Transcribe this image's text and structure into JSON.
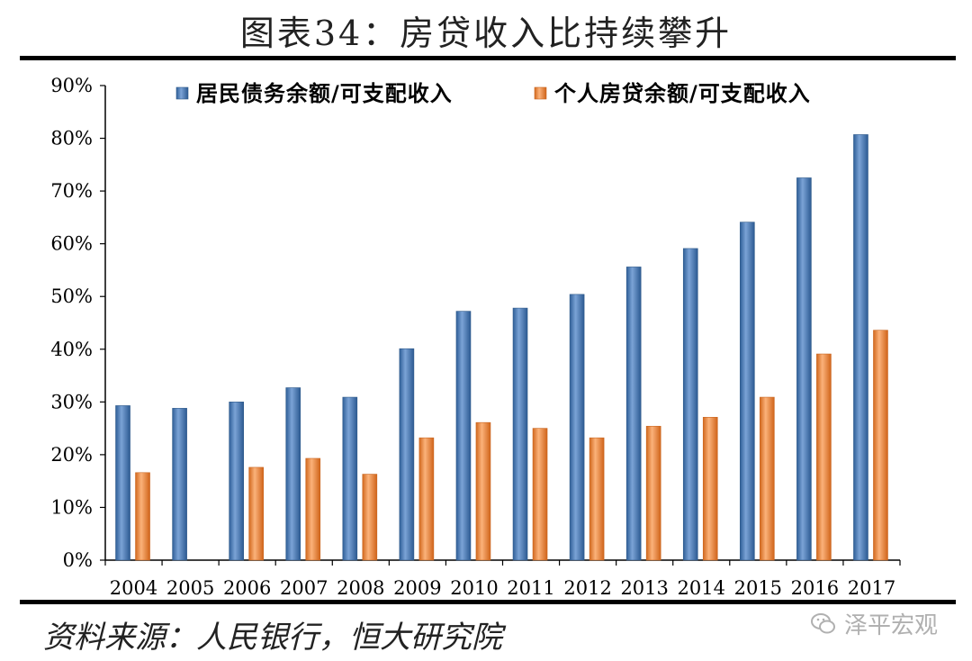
{
  "figure": {
    "title": "图表34：房贷收入比持续攀升",
    "source": "资料来源：人民银行，恒大研究院",
    "watermark": "泽平宏观",
    "watermark_icon": "wechat-icon"
  },
  "chart_data": {
    "type": "bar",
    "title": "图表34：房贷收入比持续攀升",
    "xlabel": "",
    "ylabel": "",
    "ylim": [
      0,
      90
    ],
    "yticks": [
      "0%",
      "10%",
      "20%",
      "30%",
      "40%",
      "50%",
      "60%",
      "70%",
      "80%",
      "90%"
    ],
    "grid": false,
    "legend_position": "top",
    "categories": [
      "2004",
      "2005",
      "2006",
      "2007",
      "2008",
      "2009",
      "2010",
      "2011",
      "2012",
      "2013",
      "2014",
      "2015",
      "2016",
      "2017"
    ],
    "series": [
      {
        "name": "居民债务余额/可支配收入",
        "color": "#4f81bd",
        "values": [
          29.3,
          28.8,
          30.0,
          32.7,
          30.9,
          40.1,
          47.2,
          47.8,
          50.4,
          55.6,
          59.1,
          64.1,
          72.5,
          80.7
        ]
      },
      {
        "name": "个人房贷余额/可支配收入",
        "color": "#f79646",
        "values": [
          16.6,
          null,
          17.6,
          19.3,
          16.3,
          23.2,
          26.1,
          25.0,
          23.2,
          25.4,
          27.1,
          30.9,
          39.1,
          43.6
        ]
      }
    ]
  }
}
